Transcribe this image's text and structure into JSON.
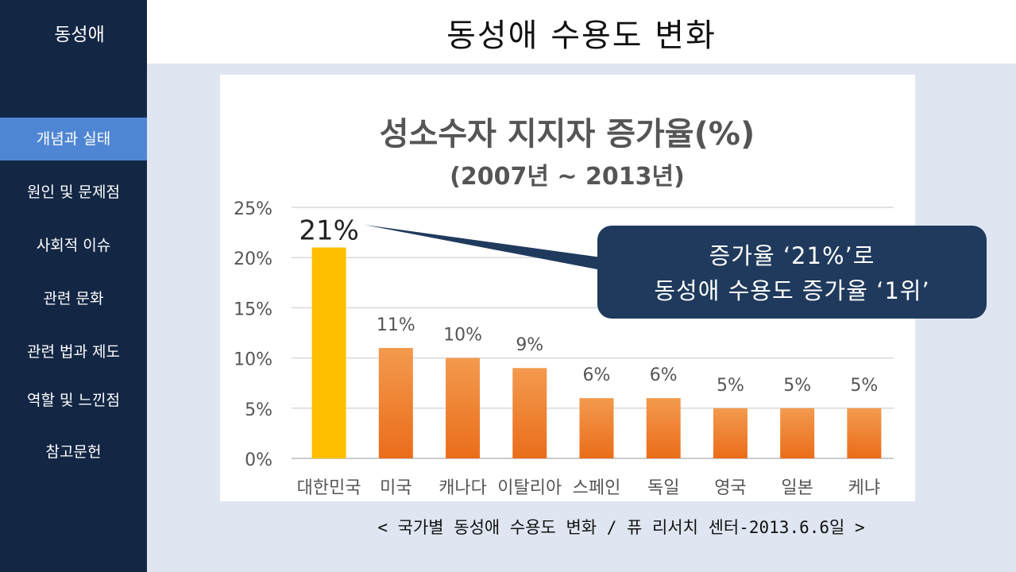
{
  "sidebar": {
    "logo": "동성애",
    "items": [
      {
        "label": "개념과 실태",
        "active": true
      },
      {
        "label": "원인 및 문제점",
        "active": false
      },
      {
        "label": "사회적 이슈",
        "active": false
      },
      {
        "label": "관련 문화",
        "active": false
      },
      {
        "label": "관련 법과 제도",
        "active": false
      },
      {
        "label": "역할 및 느낀점",
        "active": false
      },
      {
        "label": "참고문헌",
        "active": false
      }
    ]
  },
  "header": {
    "title": "동성애 수용도 변화"
  },
  "callout": {
    "line1": "증가율 ‘21%’로",
    "line2": "동성애 수용도 증가율 ‘1위’"
  },
  "caption": "< 국가별 동성애 수용도 변화 / 퓨 리서치 센터-2013.6.6일 >",
  "colors": {
    "highlight_bar": "#ffbf00",
    "bar_top": "#f39a4e",
    "bar_bottom": "#ea6d1a",
    "callout_bg": "#1f3a5c",
    "sidebar_bg": "#132644",
    "sidebar_active": "#4f86d3"
  },
  "chart_data": {
    "type": "bar",
    "title": "성소수자 지지자 증가율(%)",
    "subtitle": "(2007년 ~ 2013년)",
    "xlabel": "",
    "ylabel": "",
    "categories": [
      "대한민국",
      "미국",
      "캐나다",
      "이탈리아",
      "스페인",
      "독일",
      "영국",
      "일본",
      "케냐"
    ],
    "values": [
      21,
      11,
      10,
      9,
      6,
      6,
      5,
      5,
      5
    ],
    "value_labels": [
      "21%",
      "11%",
      "10%",
      "9%",
      "6%",
      "6%",
      "5%",
      "5%",
      "5%"
    ],
    "ylim": [
      0,
      25
    ],
    "yticks": [
      0,
      5,
      10,
      15,
      20,
      25
    ],
    "ytick_labels": [
      "0%",
      "5%",
      "10%",
      "15%",
      "20%",
      "25%"
    ],
    "grid": true,
    "highlight_index": 0
  }
}
